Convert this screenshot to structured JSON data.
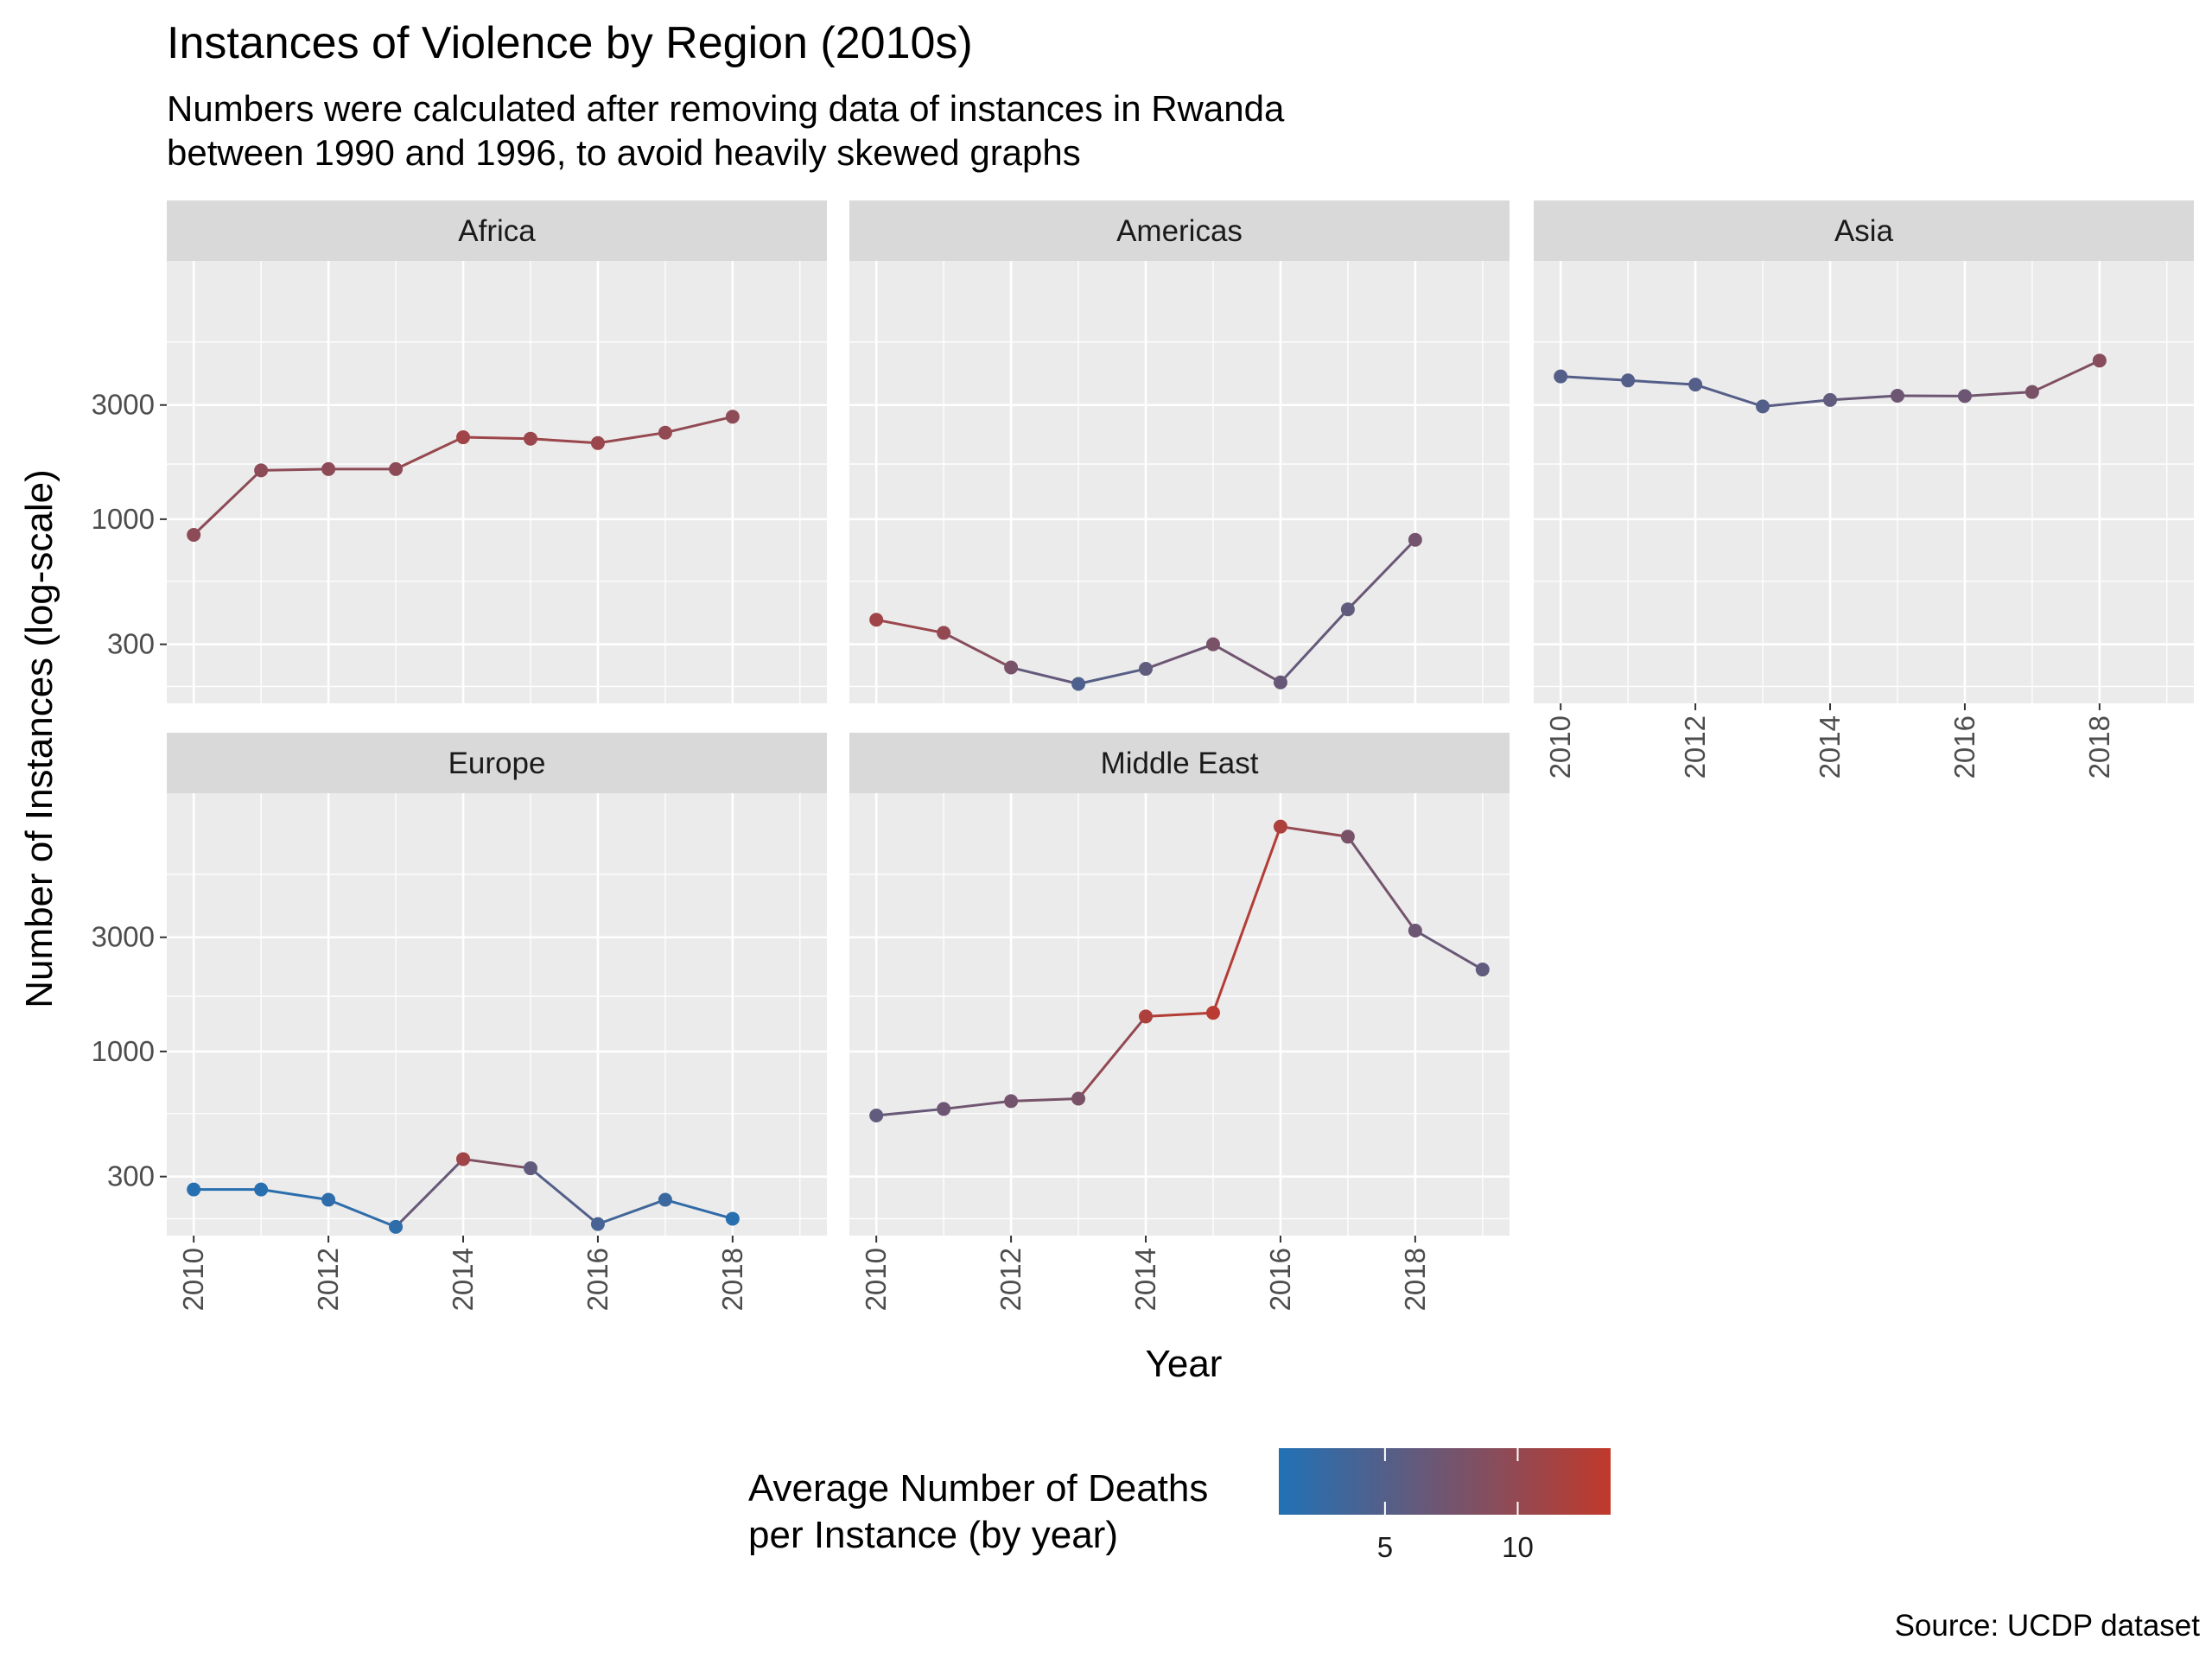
{
  "chart_data": {
    "type": "line",
    "title": "Instances of Violence by Region (2010s)",
    "subtitle_lines": [
      "Numbers were calculated after removing data of instances in Rwanda",
      "between 1990 and 1996, to avoid heavily skewed graphs"
    ],
    "xlabel": "Year",
    "ylabel": "Number of Instances (log-scale)",
    "caption": "Source: UCDP dataset",
    "y_scale": "log10",
    "ylim": [
      170,
      12000
    ],
    "xlim": [
      2009.6,
      2019.4
    ],
    "y_ticks": [
      300,
      1000,
      3000
    ],
    "x_ticks": [
      2010,
      2012,
      2014,
      2016,
      2018
    ],
    "grid": true,
    "legend": {
      "title_lines": [
        "Average Number of Deaths",
        "per Instance (by year)"
      ],
      "placement": "bottom",
      "type": "colorbar",
      "range": [
        1,
        13.5
      ],
      "ticks": [
        5,
        10
      ],
      "low_color": "#2171b5",
      "high_color": "#c0392b"
    },
    "panels": [
      {
        "name": "Africa",
        "x": [
          2010,
          2011,
          2012,
          2013,
          2014,
          2015,
          2016,
          2017,
          2018
        ],
        "y": [
          860,
          1600,
          1620,
          1620,
          2200,
          2170,
          2080,
          2300,
          2680
        ],
        "deaths": [
          9.5,
          9.5,
          9.5,
          9.5,
          11,
          10.5,
          10.5,
          10,
          9.5
        ]
      },
      {
        "name": "Americas",
        "x": [
          2010,
          2011,
          2012,
          2013,
          2014,
          2015,
          2016,
          2017,
          2018
        ],
        "y": [
          380,
          335,
          240,
          205,
          237,
          300,
          208,
          420,
          820
        ],
        "deaths": [
          11,
          10,
          8,
          4.5,
          6,
          8,
          6.5,
          6,
          7.5
        ]
      },
      {
        "name": "Asia",
        "x": [
          2010,
          2011,
          2012,
          2013,
          2014,
          2015,
          2016,
          2017,
          2018
        ],
        "y": [
          3950,
          3800,
          3650,
          2960,
          3150,
          3280,
          3270,
          3400,
          4600
        ],
        "deaths": [
          5,
          5,
          5,
          5,
          6,
          7,
          7,
          8,
          9
        ]
      },
      {
        "name": "Europe",
        "x": [
          2010,
          2011,
          2012,
          2013,
          2014,
          2015,
          2016,
          2017,
          2018
        ],
        "y": [
          265,
          265,
          240,
          185,
          355,
          325,
          190,
          240,
          200
        ],
        "deaths": [
          1.5,
          1.5,
          2,
          2,
          11,
          6,
          4,
          3,
          1.5
        ]
      },
      {
        "name": "Middle East",
        "x": [
          2010,
          2011,
          2012,
          2013,
          2014,
          2015,
          2016,
          2017,
          2018,
          2019
        ],
        "y": [
          540,
          575,
          620,
          635,
          1400,
          1450,
          8700,
          7900,
          3200,
          2200
        ],
        "deaths": [
          6,
          7,
          7.5,
          8,
          12,
          13,
          12,
          8,
          7,
          6
        ]
      }
    ]
  }
}
